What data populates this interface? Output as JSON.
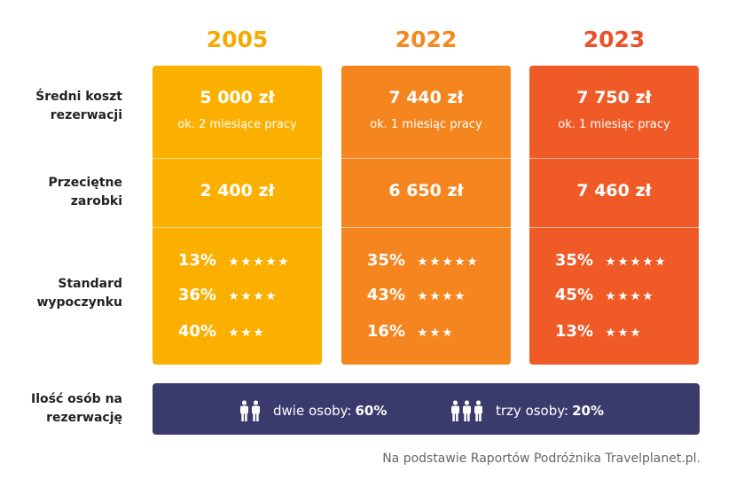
{
  "columns": [
    {
      "year": "2005",
      "cost": "5 000 zł",
      "cost_note": "ok. 2 miesiące pracy",
      "earnings": "2 400 zł",
      "standard": [
        "13%",
        "36%",
        "40%"
      ]
    },
    {
      "year": "2022",
      "cost": "7 440 zł",
      "cost_note": "ok. 1 miesiąc pracy",
      "earnings": "6 650 zł",
      "standard": [
        "35%",
        "43%",
        "16%"
      ]
    },
    {
      "year": "2023",
      "cost": "7 750 zł",
      "cost_note": "ok. 1 miesiąc pracy",
      "earnings": "7 460 zł",
      "standard": [
        "35%",
        "45%",
        "13%"
      ]
    }
  ],
  "row_labels": {
    "cost": [
      "Średni koszt",
      "rezerwacji"
    ],
    "earnings": [
      "Przeciętne",
      "zarobki"
    ],
    "standard": [
      "Standard",
      "wypoczynku"
    ],
    "party": [
      "Ilość osób na",
      "rezerwację"
    ]
  },
  "stars": [
    5,
    4,
    3
  ],
  "party": [
    {
      "people": 2,
      "label": "dwie osoby:",
      "share": "60%"
    },
    {
      "people": 3,
      "label": "trzy osoby:",
      "share": "20%"
    }
  ],
  "source": "Na podstawie Raportów Podróżnika Travelplanet.pl."
}
